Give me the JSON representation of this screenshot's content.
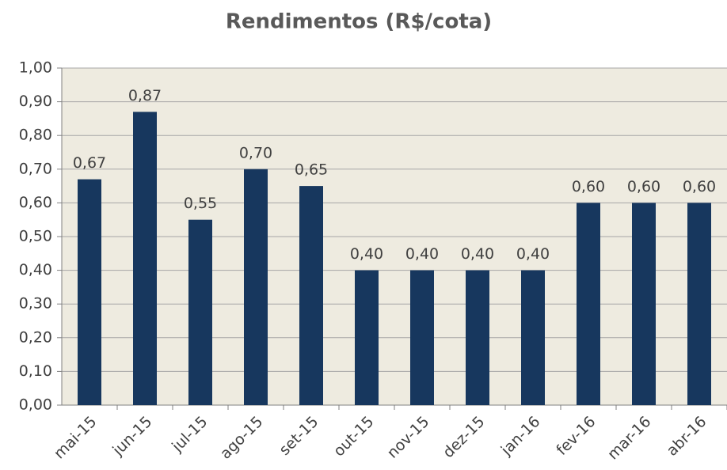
{
  "chart_data": {
    "type": "bar",
    "title": "Rendimentos (R$/cota)",
    "categories": [
      "mai-15",
      "jun-15",
      "jul-15",
      "ago-15",
      "set-15",
      "out-15",
      "nov-15",
      "dez-15",
      "jan-16",
      "fev-16",
      "mar-16",
      "abr-16"
    ],
    "values": [
      0.67,
      0.87,
      0.55,
      0.7,
      0.65,
      0.4,
      0.4,
      0.4,
      0.4,
      0.6,
      0.6,
      0.6
    ],
    "value_labels": [
      "0,67",
      "0,87",
      "0,55",
      "0,70",
      "0,65",
      "0,40",
      "0,40",
      "0,40",
      "0,40",
      "0,60",
      "0,60",
      "0,60"
    ],
    "color": "#17375e",
    "ylim": [
      0,
      1
    ],
    "yticks": [
      {
        "value": 0,
        "label": "0,00"
      },
      {
        "value": 0.1,
        "label": "0,10"
      },
      {
        "value": 0.2,
        "label": "0,20"
      },
      {
        "value": 0.3,
        "label": "0,30"
      },
      {
        "value": 0.4,
        "label": "0,40"
      },
      {
        "value": 0.5,
        "label": "0,50"
      },
      {
        "value": 0.6,
        "label": "0,60"
      },
      {
        "value": 0.7,
        "label": "0,70"
      },
      {
        "value": 0.8,
        "label": "0,80"
      },
      {
        "value": 0.9,
        "label": "0,90"
      },
      {
        "value": 1,
        "label": "1,00"
      }
    ],
    "grid": true
  }
}
